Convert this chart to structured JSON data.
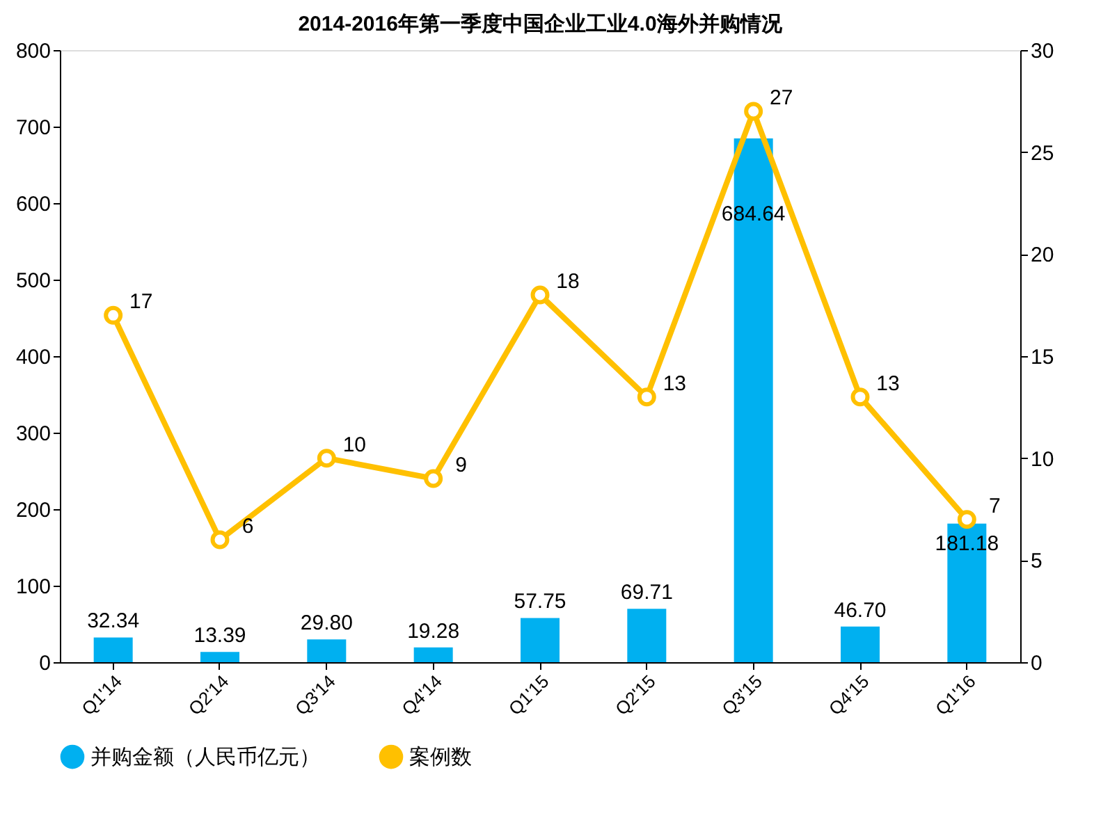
{
  "chart_data": {
    "type": "bar",
    "title": "2014-2016年第一季度中国企业工业4.0海外并购情况",
    "categories": [
      "Q1'14",
      "Q2'14",
      "Q3'14",
      "Q4'14",
      "Q1'15",
      "Q2'15",
      "Q3'15",
      "Q4'15",
      "Q1'16"
    ],
    "series": [
      {
        "name": "并购金额（人民币亿元）",
        "color": "#00b0f0",
        "values": [
          32.34,
          13.39,
          29.8,
          19.28,
          57.75,
          69.71,
          684.64,
          46.7,
          181.18
        ],
        "value_labels": [
          "32.34",
          "13.39",
          "29.80",
          "19.28",
          "57.75",
          "69.71",
          "684.64",
          "46.70",
          "181.18"
        ]
      },
      {
        "name": "案例数",
        "type": "line",
        "axis": "y2",
        "color": "#ffc000",
        "marker": "circle",
        "values": [
          17,
          6,
          10,
          9,
          18,
          13,
          27,
          13,
          7
        ]
      }
    ],
    "ylim": [
      0,
      800
    ],
    "yticks": [
      0,
      100,
      200,
      300,
      400,
      500,
      600,
      700,
      800
    ],
    "y2lim": [
      0,
      30
    ],
    "y2ticks": [
      0,
      5,
      10,
      15,
      20,
      25,
      30
    ],
    "data_labels": true,
    "legend": "bottom",
    "grid": false
  }
}
